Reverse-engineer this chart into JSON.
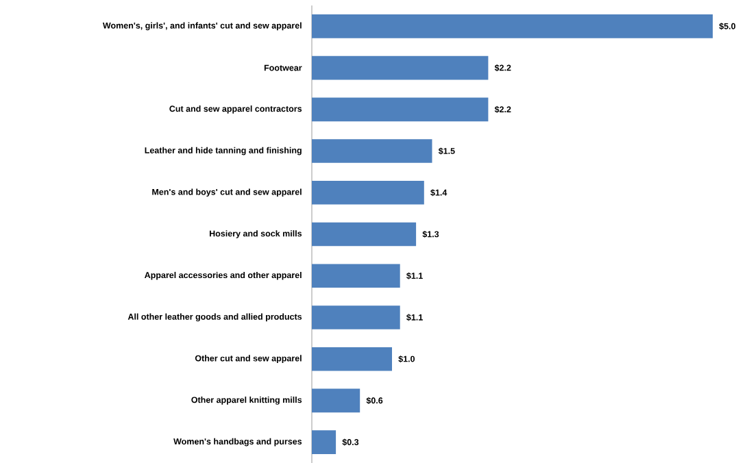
{
  "chart_data": {
    "type": "bar",
    "orientation": "horizontal",
    "categories": [
      "Women's, girls', and infants' cut and sew apparel",
      "Footwear",
      "Cut and sew apparel contractors",
      "Leather and hide tanning and finishing",
      "Men's and boys' cut and sew apparel",
      "Hosiery and sock mills",
      "Apparel accessories and other apparel",
      "All other leather goods and allied products",
      "Other cut and sew apparel",
      "Other apparel knitting mills",
      "Women's handbags and purses"
    ],
    "values": [
      5.0,
      2.2,
      2.2,
      1.5,
      1.4,
      1.3,
      1.1,
      1.1,
      1.0,
      0.6,
      0.3
    ],
    "value_labels": [
      "$5.0",
      "$2.2",
      "$2.2",
      "$1.5",
      "$1.4",
      "$1.3",
      "$1.1",
      "$1.1",
      "$1.0",
      "$0.6",
      "$0.3"
    ],
    "color": "#4f81bd"
  }
}
